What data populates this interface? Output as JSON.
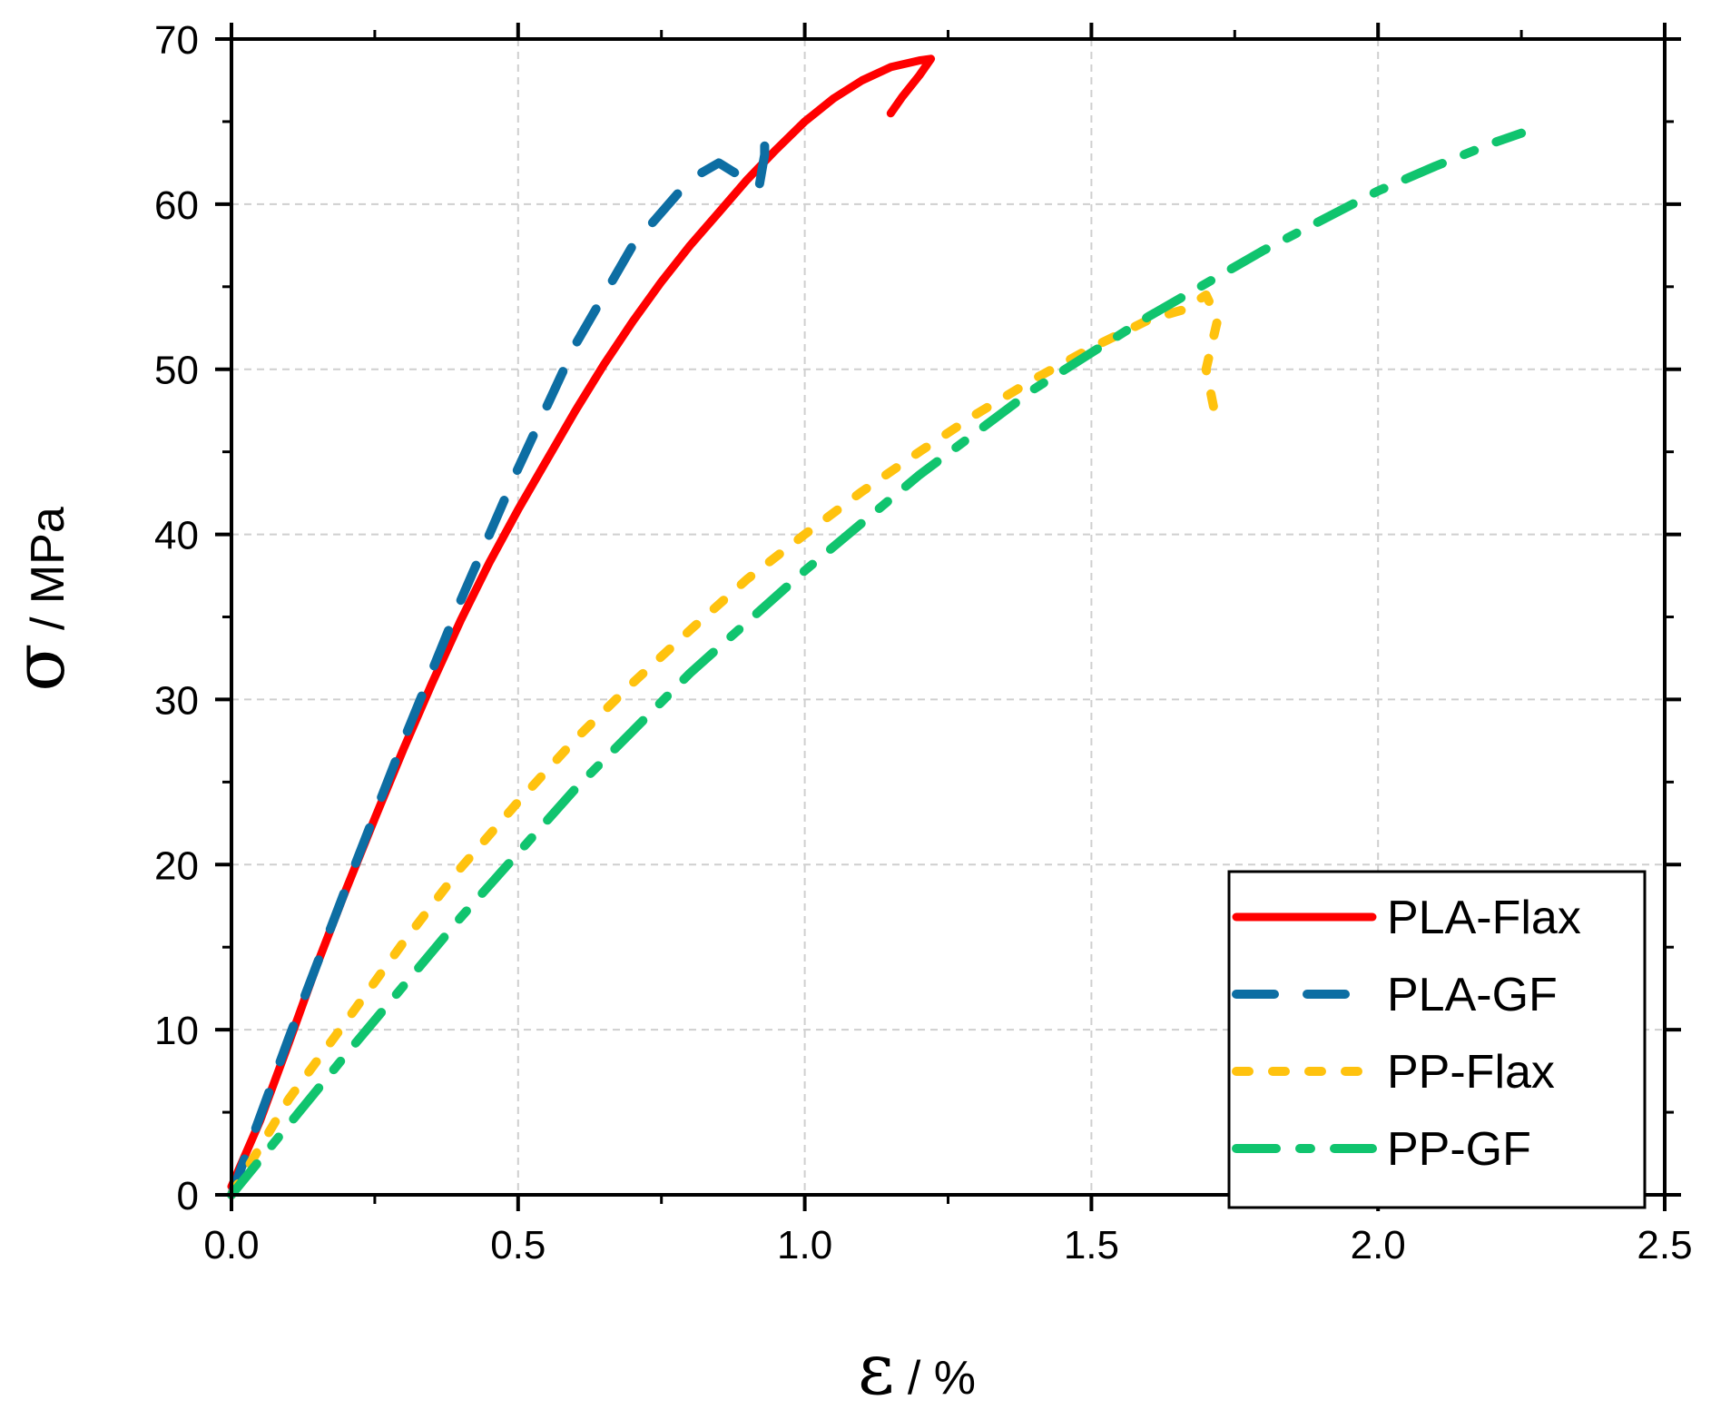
{
  "chart_data": {
    "type": "line",
    "title": "",
    "xlabel_symbol": "ε",
    "xlabel_unit": " / %",
    "ylabel_symbol": "σ",
    "ylabel_unit": " / MPa",
    "xlim": [
      0.0,
      2.5
    ],
    "ylim": [
      0,
      70
    ],
    "x_ticks": [
      "0.0",
      "0.5",
      "1.0",
      "1.5",
      "2.0",
      "2.5"
    ],
    "y_ticks": [
      "0",
      "10",
      "20",
      "30",
      "40",
      "50",
      "60",
      "70"
    ],
    "grid": true,
    "legend_position": "bottom-right",
    "series": [
      {
        "name": "PLA-Flax",
        "color": "#ff0000",
        "style": "solid",
        "x": [
          0.0,
          0.05,
          0.1,
          0.15,
          0.2,
          0.25,
          0.3,
          0.35,
          0.4,
          0.45,
          0.5,
          0.55,
          0.6,
          0.65,
          0.7,
          0.75,
          0.8,
          0.85,
          0.9,
          0.95,
          1.0,
          1.05,
          1.1,
          1.15,
          1.2,
          1.22,
          1.2,
          1.17,
          1.15
        ],
        "y": [
          0.5,
          4.5,
          9.2,
          14.0,
          18.5,
          22.8,
          27.0,
          31.0,
          34.8,
          38.3,
          41.5,
          44.5,
          47.5,
          50.3,
          52.9,
          55.3,
          57.5,
          59.5,
          61.5,
          63.3,
          65.0,
          66.4,
          67.5,
          68.3,
          68.7,
          68.8,
          67.8,
          66.5,
          65.5
        ]
      },
      {
        "name": "PLA-GF",
        "color": "#0d6ea3",
        "style": "dashed",
        "x": [
          0.0,
          0.1,
          0.2,
          0.3,
          0.4,
          0.5,
          0.6,
          0.7,
          0.8,
          0.85,
          0.92,
          0.93,
          0.93
        ],
        "y": [
          0.0,
          9.5,
          18.6,
          27.5,
          36.0,
          44.0,
          51.5,
          57.5,
          61.5,
          62.5,
          61.0,
          63.0,
          64.5
        ]
      },
      {
        "name": "PP-Flax",
        "color": "#ffc20e",
        "style": "dotted",
        "x": [
          0.0,
          0.1,
          0.2,
          0.3,
          0.4,
          0.5,
          0.6,
          0.7,
          0.8,
          0.9,
          1.0,
          1.1,
          1.2,
          1.3,
          1.4,
          1.5,
          1.6,
          1.66,
          1.7,
          1.72,
          1.7,
          1.72
        ],
        "y": [
          0.0,
          5.8,
          10.5,
          15.3,
          19.8,
          23.8,
          27.6,
          31.0,
          34.2,
          37.3,
          40.0,
          42.6,
          45.0,
          47.3,
          49.4,
          51.3,
          53.0,
          53.6,
          54.5,
          53.0,
          50.0,
          46.5
        ]
      },
      {
        "name": "PP-GF",
        "color": "#10c46e",
        "style": "dashdot",
        "x": [
          0.0,
          0.2,
          0.4,
          0.6,
          0.8,
          1.0,
          1.2,
          1.4,
          1.6,
          1.8,
          2.0,
          2.1,
          2.2,
          2.25
        ],
        "y": [
          0.0,
          8.5,
          16.8,
          24.6,
          31.6,
          37.8,
          43.6,
          48.8,
          53.2,
          57.2,
          60.8,
          62.3,
          63.7,
          64.3
        ]
      }
    ]
  }
}
